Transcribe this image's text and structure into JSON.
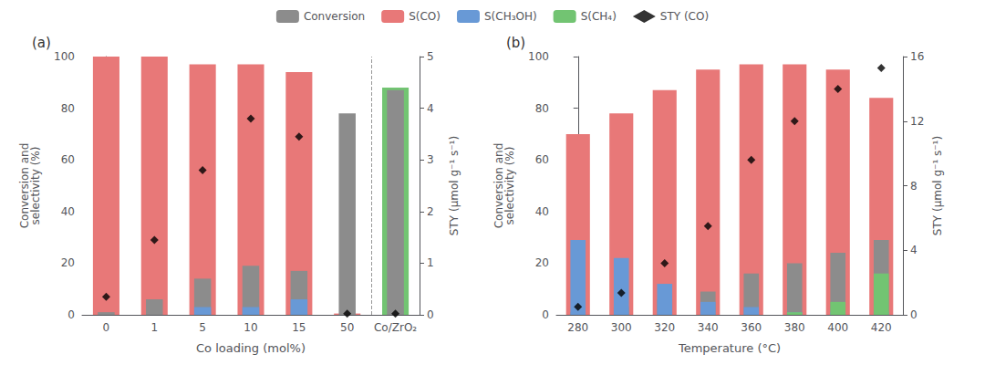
{
  "chart_data": [
    {
      "type": "bar",
      "title": "(a)",
      "categories": [
        "0",
        "1",
        "5",
        "10",
        "15",
        "50",
        "Co/ZrO₂"
      ],
      "xlabel": "Co loading (mol%)",
      "ylabel": "Conversion and\nselectivity (%)",
      "y2label": "STY (μmol g⁻¹ s⁻¹)",
      "ylim": [
        0,
        100
      ],
      "yticks": [
        0,
        20,
        40,
        60,
        80,
        100
      ],
      "y2lim": [
        0,
        5
      ],
      "y2ticks": [
        0,
        1,
        2,
        3,
        4,
        5
      ],
      "grid": false,
      "legend": "top",
      "series": [
        {
          "name": "Conversion",
          "color": "#8C8C8C",
          "values": [
            1,
            6,
            14,
            19,
            17,
            78,
            87
          ]
        },
        {
          "name": "S(CO)",
          "color": "#E87878",
          "colors": [
            "#E87878",
            "#E87878",
            "#E87878",
            "#E87878",
            "#E87878",
            "#E87878",
            "#72C472"
          ],
          "values": [
            100,
            100,
            97,
            97,
            94,
            0.5,
            88
          ]
        },
        {
          "name": "S(CH₃OH)",
          "color": "#6899D6",
          "values": [
            0,
            0,
            3,
            3,
            6,
            0,
            0
          ]
        },
        {
          "name": "S(CH₄)",
          "color": "#72C472",
          "values": [
            0,
            0,
            0,
            0,
            0,
            0,
            0
          ]
        },
        {
          "name": "STY (CO)",
          "type": "scatter",
          "axis": "y2",
          "color": "black",
          "marker": "diamond",
          "values": [
            0.35,
            1.45,
            2.8,
            3.8,
            3.45,
            0.02,
            0.02
          ]
        }
      ]
    },
    {
      "type": "bar",
      "title": "(b)",
      "categories": [
        "280",
        "300",
        "320",
        "340",
        "360",
        "380",
        "400",
        "420"
      ],
      "xlabel": "Temperature (°C)",
      "ylabel": "Conversion and\nselectivity (%)",
      "y2label": "STY (μmol g⁻¹ s⁻¹)",
      "ylim": [
        0,
        100
      ],
      "yticks": [
        0,
        20,
        40,
        60,
        80,
        100
      ],
      "y2lim": [
        0,
        16
      ],
      "y2ticks": [
        0,
        4,
        8,
        12,
        16
      ],
      "grid": false,
      "legend": "top",
      "series": [
        {
          "name": "Conversion",
          "color": "#8C8C8C",
          "values": [
            1,
            3,
            6,
            9,
            16,
            20,
            24,
            29
          ]
        },
        {
          "name": "S(CO)",
          "color": "#E87878",
          "values": [
            70,
            78,
            87,
            95,
            97,
            97,
            95,
            84
          ]
        },
        {
          "name": "S(CH₃OH)",
          "color": "#6899D6",
          "values": [
            29,
            22,
            12,
            5,
            3,
            1,
            1,
            1
          ]
        },
        {
          "name": "S(CH₄)",
          "color": "#72C472",
          "values": [
            0,
            0,
            0,
            0,
            0,
            1,
            5,
            16
          ]
        },
        {
          "name": "STY (CO)",
          "type": "scatter",
          "axis": "y2",
          "color": "black",
          "marker": "diamond",
          "values": [
            0.5,
            1.35,
            3.2,
            5.5,
            9.6,
            12.0,
            14.0,
            15.3
          ]
        }
      ]
    }
  ]
}
